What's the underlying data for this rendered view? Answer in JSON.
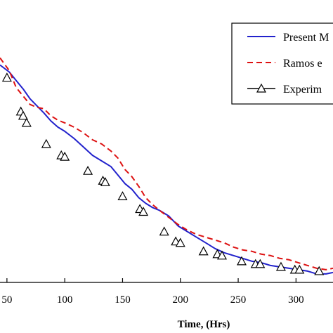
{
  "chart_data": {
    "type": "line",
    "title": "",
    "xlabel": "Time, (Hrs)",
    "ylabel": "",
    "xlim": [
      44,
      332
    ],
    "ylim": [
      0,
      1
    ],
    "x_ticks": [
      50,
      100,
      150,
      200,
      250,
      300
    ],
    "x_tick_labels": [
      "50",
      "100",
      "150",
      "200",
      "250",
      "300"
    ],
    "grid": false,
    "legend_position": "top-right",
    "series": [
      {
        "name": "Present M",
        "style": "solid",
        "color": "#2222cc",
        "x": [
          44,
          52,
          58,
          64,
          70,
          76,
          82,
          88,
          94,
          100,
          108,
          116,
          124,
          132,
          140,
          146,
          152,
          158,
          164,
          170,
          176,
          182,
          190,
          198,
          206,
          214,
          222,
          230,
          238,
          246,
          254,
          262,
          270,
          278,
          286,
          294,
          302,
          310,
          318,
          326,
          332
        ],
        "y": [
          0.77,
          0.745,
          0.715,
          0.685,
          0.65,
          0.625,
          0.6,
          0.572,
          0.55,
          0.535,
          0.51,
          0.48,
          0.45,
          0.43,
          0.41,
          0.38,
          0.35,
          0.33,
          0.3,
          0.28,
          0.265,
          0.255,
          0.235,
          0.2,
          0.18,
          0.16,
          0.14,
          0.12,
          0.105,
          0.095,
          0.085,
          0.075,
          0.07,
          0.06,
          0.055,
          0.05,
          0.045,
          0.04,
          0.03,
          0.03,
          0.035
        ]
      },
      {
        "name": "Ramos e",
        "style": "dashed",
        "color": "#dd1111",
        "x": [
          44,
          52,
          58,
          64,
          70,
          76,
          82,
          88,
          94,
          100,
          108,
          116,
          124,
          132,
          140,
          146,
          152,
          158,
          164,
          170,
          176,
          182,
          190,
          198,
          206,
          214,
          222,
          230,
          238,
          246,
          254,
          262,
          270,
          278,
          286,
          294,
          302,
          310,
          318,
          326,
          332
        ],
        "y": [
          0.795,
          0.75,
          0.69,
          0.66,
          0.63,
          0.62,
          0.615,
          0.59,
          0.575,
          0.565,
          0.55,
          0.53,
          0.505,
          0.49,
          0.465,
          0.44,
          0.4,
          0.375,
          0.34,
          0.3,
          0.275,
          0.255,
          0.23,
          0.205,
          0.185,
          0.17,
          0.16,
          0.15,
          0.14,
          0.125,
          0.115,
          0.11,
          0.1,
          0.095,
          0.085,
          0.08,
          0.07,
          0.06,
          0.05,
          0.045,
          0.05
        ]
      },
      {
        "name": "Experim",
        "style": "markers",
        "color": "#000000",
        "x": [
          50,
          62,
          64,
          67,
          84,
          97,
          100,
          120,
          133,
          135,
          150,
          165,
          168,
          186,
          196,
          200,
          220,
          232,
          236,
          253,
          265,
          269,
          287,
          299,
          303,
          320
        ],
        "y": [
          0.725,
          0.605,
          0.59,
          0.565,
          0.49,
          0.45,
          0.445,
          0.395,
          0.36,
          0.355,
          0.305,
          0.26,
          0.25,
          0.18,
          0.145,
          0.14,
          0.11,
          0.1,
          0.095,
          0.075,
          0.065,
          0.065,
          0.055,
          0.045,
          0.045,
          0.04
        ]
      }
    ]
  }
}
